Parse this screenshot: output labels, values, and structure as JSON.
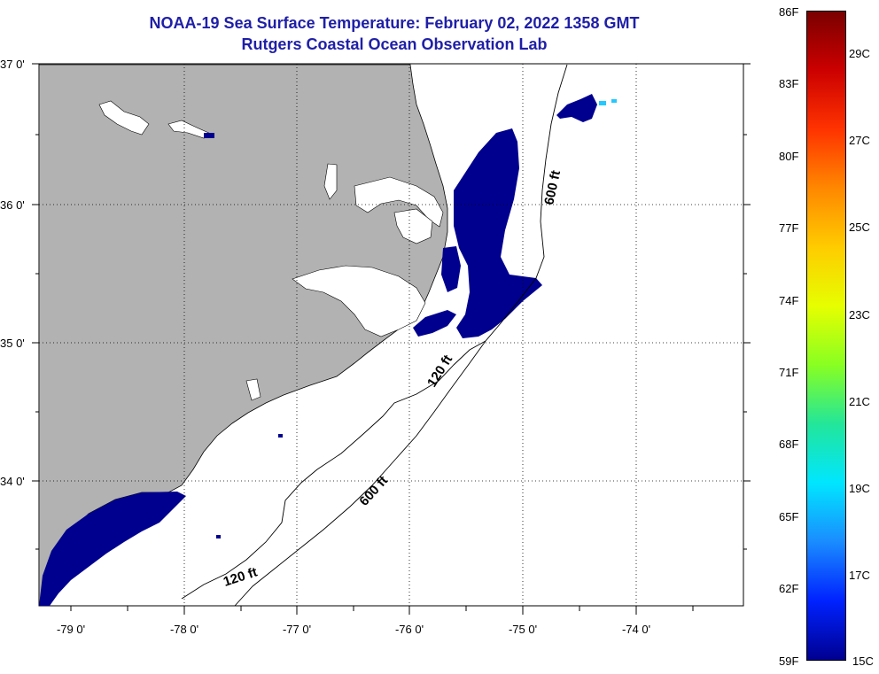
{
  "header": {
    "title": "NOAA-19 Sea Surface Temperature:  February 02, 2022 1358 GMT",
    "subtitle": "Rutgers Coastal Ocean Observation Lab"
  },
  "map": {
    "latitude_labels": [
      "37 0'",
      "36 0'",
      "35 0'",
      "34 0'"
    ],
    "longitude_labels": [
      "-79 0'",
      "-78 0'",
      "-77 0'",
      "-76 0'",
      "-75 0'",
      "-74 0'"
    ],
    "contour_labels": [
      "600 ft",
      "120 ft",
      "600 ft",
      "120 ft"
    ],
    "colors": {
      "land": "#b2b2b2",
      "water": "#ffffff",
      "sst_cold": "#00008f",
      "sst_cyan": "#22c8ff"
    }
  },
  "colorbar": {
    "fahrenheit_labels": [
      "86F",
      "83F",
      "80F",
      "77F",
      "74F",
      "71F",
      "68F",
      "65F",
      "62F",
      "59F"
    ],
    "celsius_labels": [
      "29C",
      "27C",
      "25C",
      "23C",
      "21C",
      "19C",
      "17C",
      "15C"
    ],
    "gradient": [
      "#7a0000",
      "#cc0000",
      "#ff3300",
      "#ff8800",
      "#ffcc00",
      "#e6ff00",
      "#88ff22",
      "#22e69a",
      "#00e6ff",
      "#1a8cff",
      "#0022ff",
      "#000090"
    ]
  }
}
